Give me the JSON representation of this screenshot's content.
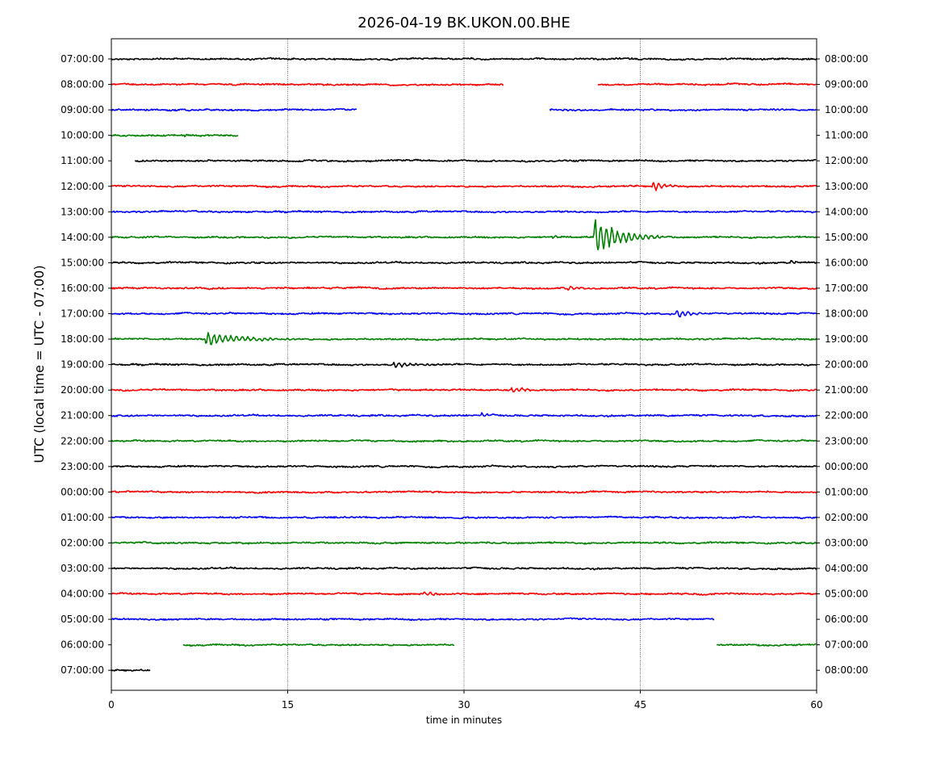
{
  "chart_data": {
    "type": "line",
    "title": "2026-04-19 BK.UKON.00.BHE",
    "xlabel": "time in minutes",
    "ylabel": "UTC (local time = UTC - 07:00)",
    "xlim": [
      0,
      60
    ],
    "xticks": [
      0,
      15,
      30,
      45,
      60
    ],
    "xtick_labels": [
      "0",
      "15",
      "30",
      "45",
      "60"
    ],
    "vertical_gridlines_at": [
      15,
      30,
      45
    ],
    "grid": "vertical dotted lines at 15, 30, 45",
    "legend": "none",
    "colors": [
      "#000000",
      "#ff0000",
      "#0000ff",
      "#008000"
    ],
    "rows": [
      {
        "left": "07:00:00",
        "right": "08:00:00",
        "color": "#000000",
        "segments": [
          [
            0,
            60
          ]
        ],
        "events": []
      },
      {
        "left": "08:00:00",
        "right": "09:00:00",
        "color": "#ff0000",
        "segments": [
          [
            0,
            33.4
          ],
          [
            41.4,
            60
          ]
        ],
        "events": []
      },
      {
        "left": "09:00:00",
        "right": "10:00:00",
        "color": "#0000ff",
        "segments": [
          [
            0,
            20.9
          ],
          [
            37.3,
            60
          ]
        ],
        "events": []
      },
      {
        "left": "10:00:00",
        "right": "11:00:00",
        "color": "#008000",
        "segments": [
          [
            0,
            10.8
          ]
        ],
        "events": [
          {
            "t": 6.2,
            "amp": 2.5,
            "dur": 1
          }
        ]
      },
      {
        "left": "11:00:00",
        "right": "12:00:00",
        "color": "#000000",
        "segments": [
          [
            2,
            60
          ]
        ],
        "events": []
      },
      {
        "left": "12:00:00",
        "right": "13:00:00",
        "color": "#ff0000",
        "segments": [
          [
            0,
            60
          ]
        ],
        "events": [
          {
            "t": 46,
            "amp": 8,
            "dur": 2.2
          }
        ]
      },
      {
        "left": "13:00:00",
        "right": "14:00:00",
        "color": "#0000ff",
        "segments": [
          [
            0,
            60
          ]
        ],
        "events": []
      },
      {
        "left": "14:00:00",
        "right": "15:00:00",
        "color": "#008000",
        "segments": [
          [
            0,
            60
          ]
        ],
        "events": [
          {
            "t": 41,
            "amp": 26,
            "dur": 6
          },
          {
            "t": 37.5,
            "amp": 3,
            "dur": 1
          }
        ]
      },
      {
        "left": "15:00:00",
        "right": "16:00:00",
        "color": "#000000",
        "segments": [
          [
            0,
            60
          ]
        ],
        "events": [
          {
            "t": 57.8,
            "amp": 4,
            "dur": 1
          }
        ]
      },
      {
        "left": "16:00:00",
        "right": "17:00:00",
        "color": "#ff0000",
        "segments": [
          [
            0,
            60
          ]
        ],
        "events": [
          {
            "t": 38.8,
            "amp": 4,
            "dur": 2
          }
        ]
      },
      {
        "left": "17:00:00",
        "right": "18:00:00",
        "color": "#0000ff",
        "segments": [
          [
            0,
            60
          ]
        ],
        "events": [
          {
            "t": 48,
            "amp": 5,
            "dur": 4
          }
        ]
      },
      {
        "left": "18:00:00",
        "right": "19:00:00",
        "color": "#008000",
        "segments": [
          [
            0,
            60
          ]
        ],
        "events": [
          {
            "t": 8,
            "amp": 9,
            "dur": 8
          }
        ]
      },
      {
        "left": "19:00:00",
        "right": "20:00:00",
        "color": "#000000",
        "segments": [
          [
            0,
            60
          ]
        ],
        "events": [
          {
            "t": 24,
            "amp": 5,
            "dur": 4
          }
        ]
      },
      {
        "left": "20:00:00",
        "right": "21:00:00",
        "color": "#ff0000",
        "segments": [
          [
            0,
            60
          ]
        ],
        "events": [
          {
            "t": 34,
            "amp": 4,
            "dur": 3
          }
        ]
      },
      {
        "left": "21:00:00",
        "right": "22:00:00",
        "color": "#0000ff",
        "segments": [
          [
            0,
            60
          ]
        ],
        "events": [
          {
            "t": 31.5,
            "amp": 3.5,
            "dur": 1.5
          }
        ]
      },
      {
        "left": "22:00:00",
        "right": "23:00:00",
        "color": "#008000",
        "segments": [
          [
            0,
            60
          ]
        ],
        "events": []
      },
      {
        "left": "23:00:00",
        "right": "00:00:00",
        "color": "#000000",
        "segments": [
          [
            0,
            60
          ]
        ],
        "events": []
      },
      {
        "left": "00:00:00",
        "right": "01:00:00",
        "color": "#ff0000",
        "segments": [
          [
            0,
            60
          ]
        ],
        "events": []
      },
      {
        "left": "01:00:00",
        "right": "02:00:00",
        "color": "#0000ff",
        "segments": [
          [
            0,
            60
          ]
        ],
        "events": []
      },
      {
        "left": "02:00:00",
        "right": "03:00:00",
        "color": "#008000",
        "segments": [
          [
            0,
            60
          ]
        ],
        "events": []
      },
      {
        "left": "03:00:00",
        "right": "04:00:00",
        "color": "#000000",
        "segments": [
          [
            0,
            60
          ]
        ],
        "events": []
      },
      {
        "left": "04:00:00",
        "right": "05:00:00",
        "color": "#ff0000",
        "segments": [
          [
            0,
            60
          ]
        ],
        "events": [
          {
            "t": 26.5,
            "amp": 3.5,
            "dur": 3
          }
        ]
      },
      {
        "left": "05:00:00",
        "right": "06:00:00",
        "color": "#0000ff",
        "segments": [
          [
            0,
            51.3
          ]
        ],
        "events": []
      },
      {
        "left": "06:00:00",
        "right": "07:00:00",
        "color": "#008000",
        "segments": [
          [
            6.1,
            29.2
          ],
          [
            51.5,
            60
          ]
        ],
        "events": []
      },
      {
        "left": "07:00:00",
        "right": "08:00:00",
        "color": "#000000",
        "segments": [
          [
            0,
            3.3
          ]
        ],
        "events": []
      }
    ]
  }
}
